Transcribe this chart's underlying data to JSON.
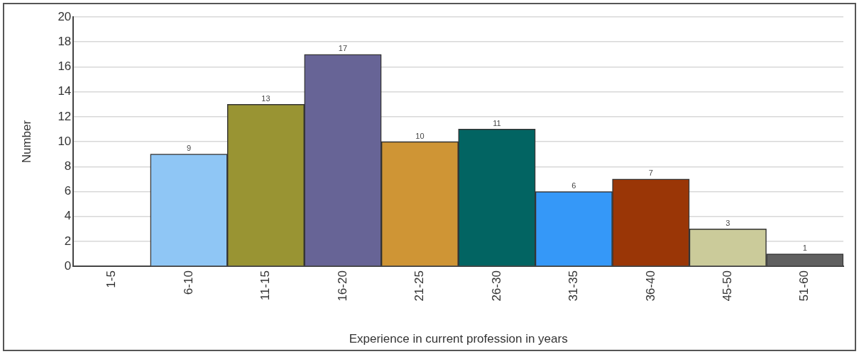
{
  "chart_data": {
    "type": "bar",
    "xlabel": "Experience in current profession in years",
    "ylabel": "Number",
    "categories": [
      "1-5",
      "6-10",
      "11-15",
      "16-20",
      "21-25",
      "26-30",
      "31-35",
      "36-40",
      "45-50",
      "51-60"
    ],
    "values": [
      0,
      9,
      13,
      17,
      10,
      11,
      6,
      7,
      3,
      1
    ],
    "value_labels": [
      null,
      "9",
      "13",
      "17",
      "10",
      "11",
      "6",
      "7",
      "3",
      "1"
    ],
    "colors": [
      "#8fc6f5",
      "#8fc6f5",
      "#999433",
      "#676496",
      "#cf9535",
      "#026462",
      "#3598f8",
      "#9a3606",
      "#cbcb9a",
      "#606060"
    ],
    "ylim": [
      0,
      20
    ],
    "yticks": [
      0,
      2,
      4,
      6,
      8,
      10,
      12,
      14,
      16,
      18,
      20
    ],
    "grid": "y"
  }
}
